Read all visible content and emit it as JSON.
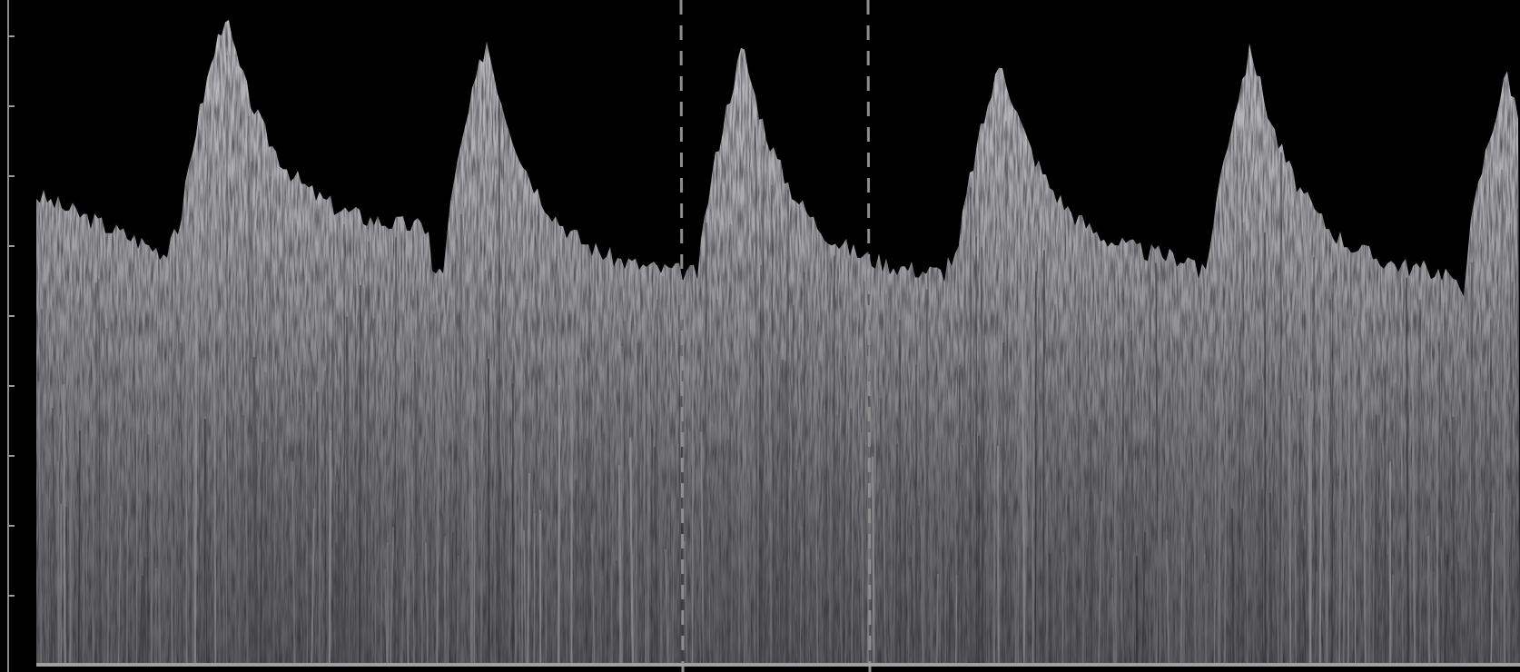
{
  "spectrogram": {
    "description_free": true,
    "cardiac_cycles": 6,
    "colors": {
      "background": "#000000",
      "scale_bar": "#8a8a8a",
      "tick_marks": "#9a9a9a",
      "baseline": "#a0a0a0",
      "spectrum_light": "#b8b8bc",
      "spectrum_mid": "#8c8c90",
      "spectrum_dark": "#3c3c40",
      "cursor_lines": "#909090"
    },
    "cycle_peaks_fraction": [
      1.0,
      0.96,
      0.95,
      0.93,
      0.95,
      0.91
    ],
    "end_diastolic_fraction": [
      0.67,
      0.6,
      0.6,
      0.62,
      0.6,
      0.58
    ]
  }
}
